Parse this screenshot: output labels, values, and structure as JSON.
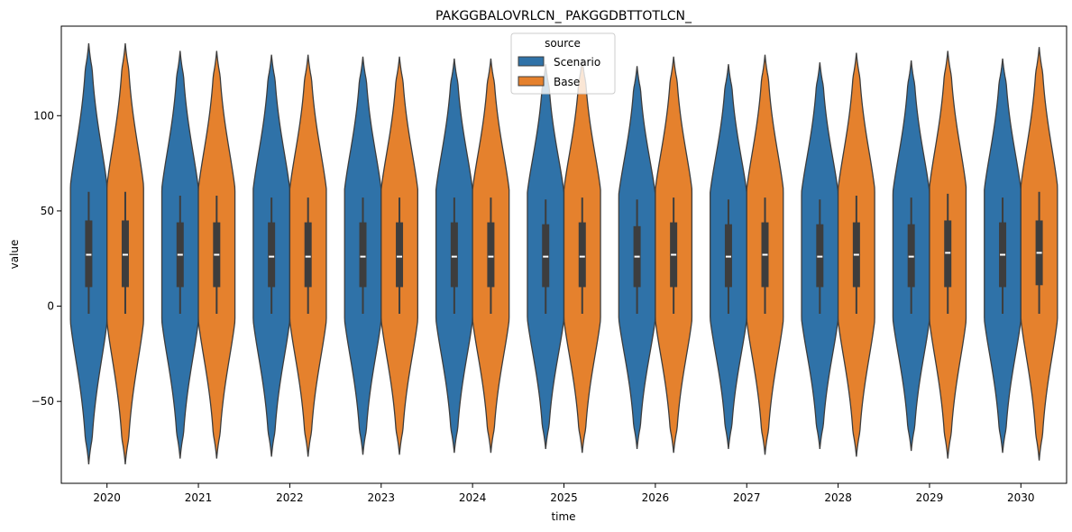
{
  "chart_data": {
    "type": "violin",
    "title": "PAKGGBALOVRLCN_ PAKGGDBTTOTLCN_",
    "xlabel": "time",
    "ylabel": "value",
    "categories": [
      "2020",
      "2021",
      "2022",
      "2023",
      "2024",
      "2025",
      "2026",
      "2027",
      "2028",
      "2029",
      "2030"
    ],
    "ylim": [
      -93,
      147
    ],
    "yticks": [
      -50,
      0,
      50,
      100
    ],
    "ytick_labels": [
      "−50",
      "0",
      "50",
      "100"
    ],
    "grid": false,
    "legend": {
      "title": "source",
      "placement": "upper-center",
      "entries": [
        "Scenario",
        "Base"
      ]
    },
    "series": [
      {
        "name": "Scenario",
        "color": "#2f72a8",
        "violin_min": [
          -83,
          -80,
          -79,
          -78,
          -77,
          -75,
          -75,
          -75,
          -75,
          -76,
          -77
        ],
        "violin_max": [
          138,
          134,
          132,
          131,
          130,
          127,
          126,
          127,
          128,
          129,
          130
        ],
        "whisker_low": [
          -4,
          -4,
          -4,
          -4,
          -4,
          -4,
          -4,
          -4,
          -4,
          -4,
          -4
        ],
        "q1": [
          10,
          10,
          10,
          10,
          10,
          10,
          10,
          10,
          10,
          10,
          10
        ],
        "median": [
          27,
          27,
          26,
          26,
          26,
          26,
          26,
          26,
          26,
          26,
          27
        ],
        "q3": [
          45,
          44,
          44,
          44,
          44,
          43,
          42,
          43,
          43,
          43,
          44
        ],
        "whisker_high": [
          60,
          58,
          57,
          57,
          57,
          56,
          56,
          56,
          56,
          57,
          57
        ]
      },
      {
        "name": "Base",
        "color": "#e5812d",
        "violin_min": [
          -83,
          -80,
          -79,
          -78,
          -77,
          -77,
          -77,
          -78,
          -79,
          -80,
          -81
        ],
        "violin_max": [
          138,
          134,
          132,
          131,
          130,
          130,
          131,
          132,
          133,
          134,
          136
        ],
        "whisker_low": [
          -4,
          -4,
          -4,
          -4,
          -4,
          -4,
          -4,
          -4,
          -4,
          -4,
          -4
        ],
        "q1": [
          10,
          10,
          10,
          10,
          10,
          10,
          10,
          10,
          10,
          10,
          11
        ],
        "median": [
          27,
          27,
          26,
          26,
          26,
          26,
          27,
          27,
          27,
          28,
          28
        ],
        "q3": [
          45,
          44,
          44,
          44,
          44,
          44,
          44,
          44,
          44,
          45,
          45
        ],
        "whisker_high": [
          60,
          58,
          57,
          57,
          57,
          57,
          57,
          57,
          58,
          59,
          60
        ]
      }
    ]
  }
}
